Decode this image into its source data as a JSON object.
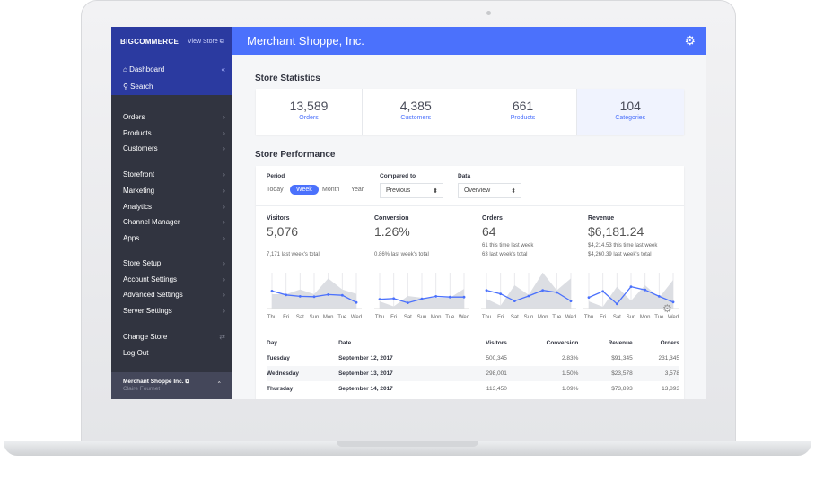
{
  "sidebar": {
    "logo": "BIGCOMMERCE",
    "view_store": "View Store ⧉",
    "top": [
      {
        "label": "Dashboard",
        "icon": "home-icon"
      },
      {
        "label": "Search",
        "icon": "search-icon"
      }
    ],
    "collapse": "«",
    "items": [
      "Orders",
      "Products",
      "Customers",
      "Storefront",
      "Marketing",
      "Analytics",
      "Channel Manager",
      "Apps",
      "Store Setup",
      "Account Settings",
      "Advanced Settings",
      "Server Settings"
    ],
    "change_store": "Change Store",
    "log_out": "Log Out",
    "footer": {
      "store": "Merchant Shoppe Inc. ⧉",
      "user": "Claire Fournet"
    }
  },
  "header": {
    "title": "Merchant Shoppe, Inc.",
    "gear": "⚙"
  },
  "stats": {
    "title": "Store Statistics",
    "items": [
      {
        "value": "13,589",
        "label": "Orders"
      },
      {
        "value": "4,385",
        "label": "Customers"
      },
      {
        "value": "661",
        "label": "Products"
      },
      {
        "value": "104",
        "label": "Categories"
      }
    ]
  },
  "performance": {
    "title": "Store Performance",
    "period_label": "Period",
    "periods": [
      "Today",
      "Week",
      "Month",
      "Year"
    ],
    "active_period": "Week",
    "compared_label": "Compared to",
    "compared_value": "Previous",
    "data_label": "Data",
    "data_value": "Overview",
    "metrics": [
      {
        "title": "Visitors",
        "value": "5,076",
        "sub1": "",
        "sub2": "7,171 last week's total"
      },
      {
        "title": "Conversion",
        "value": "1.26%",
        "sub1": "",
        "sub2": "0.86% last week's total"
      },
      {
        "title": "Orders",
        "value": "64",
        "sub1": "61 this time last week",
        "sub2": "63 last week's total"
      },
      {
        "title": "Revenue",
        "value": "$6,181.24",
        "sub1": "$4,214.53 this time last week",
        "sub2": "$4,260.39 last week's total"
      }
    ]
  },
  "chart_data": [
    {
      "type": "line",
      "categories": [
        "Thu",
        "Fri",
        "Sat",
        "Sun",
        "Mon",
        "Tue",
        "Wed"
      ],
      "series": [
        {
          "values": [
            49,
            38,
            34,
            33,
            39,
            37,
            17
          ]
        },
        {
          "values": [
            40,
            40,
            53,
            40,
            84,
            53,
            41
          ],
          "style": "area"
        }
      ]
    },
    {
      "type": "line",
      "categories": [
        "Thu",
        "Fri",
        "Sat",
        "Sun",
        "Mon",
        "Tue",
        "Wed"
      ],
      "series": [
        {
          "values": [
            26,
            28,
            16,
            27,
            34,
            32,
            32
          ]
        },
        {
          "values": [
            20,
            6,
            35,
            30,
            30,
            30,
            55
          ],
          "style": "area"
        }
      ]
    },
    {
      "type": "line",
      "categories": [
        "Thu",
        "Fri",
        "Sat",
        "Sun",
        "Mon",
        "Tue",
        "Wed"
      ],
      "series": [
        {
          "values": [
            51,
            41,
            21,
            35,
            51,
            45,
            21
          ]
        },
        {
          "values": [
            27,
            8,
            65,
            38,
            100,
            51,
            84
          ],
          "style": "area"
        }
      ]
    },
    {
      "type": "line",
      "categories": [
        "Thu",
        "Fri",
        "Sat",
        "Sun",
        "Mon",
        "Tue",
        "Wed"
      ],
      "series": [
        {
          "values": [
            31,
            48,
            13,
            61,
            52,
            34,
            18
          ]
        },
        {
          "values": [
            20,
            5,
            61,
            22,
            65,
            30,
            80
          ],
          "style": "area"
        }
      ]
    }
  ],
  "colors": {
    "accent": "#4b71fc",
    "sidebar": "#313440",
    "sidebar_top": "#2b3aa0",
    "area": "#dcdee3"
  },
  "table": {
    "headers": [
      "Day",
      "Date",
      "Visitors",
      "Conversion",
      "Revenue",
      "Orders"
    ],
    "rows": [
      [
        "Tuesday",
        "September 12, 2017",
        "500,345",
        "2.83%",
        "$91,345",
        "231,345"
      ],
      [
        "Wednesday",
        "September 13, 2017",
        "298,001",
        "1.50%",
        "$23,578",
        "3,578"
      ],
      [
        "Thursday",
        "September 14, 2017",
        "113,450",
        "1.09%",
        "$73,893",
        "13,893"
      ]
    ]
  }
}
